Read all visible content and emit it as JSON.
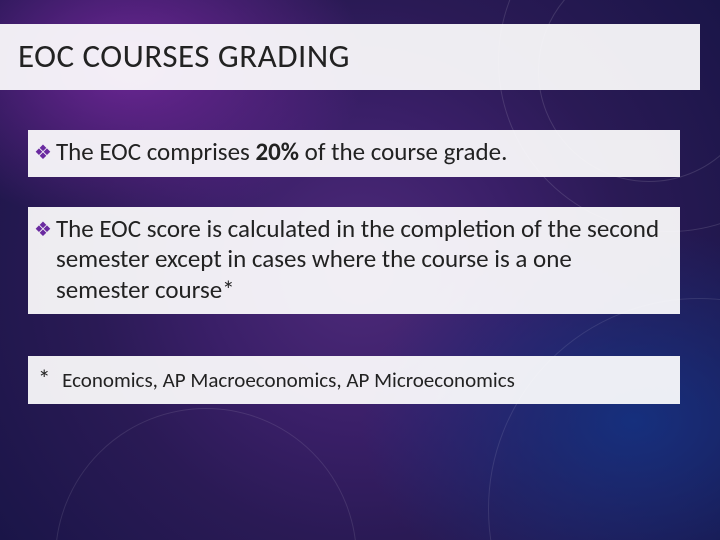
{
  "colors": {
    "bullet_marker": "#6a2aa0",
    "text": "#222222",
    "panel_bg": "rgba(255,255,255,0.92)",
    "bg_gradient_center": "#4e2a7a",
    "bg_gradient_edge": "#1a1548"
  },
  "title": "EOC COURSES GRADING",
  "bullets": [
    {
      "pre": "The EOC comprises ",
      "bold": "20%",
      "post": " of the course grade."
    },
    {
      "pre": "The EOC score is calculated in the completion of the second semester except in cases where the course is a one semester course*",
      "bold": "",
      "post": ""
    }
  ],
  "footnote": {
    "star": "*",
    "text": "Economics, AP Macroeconomics, AP Microeconomics"
  }
}
